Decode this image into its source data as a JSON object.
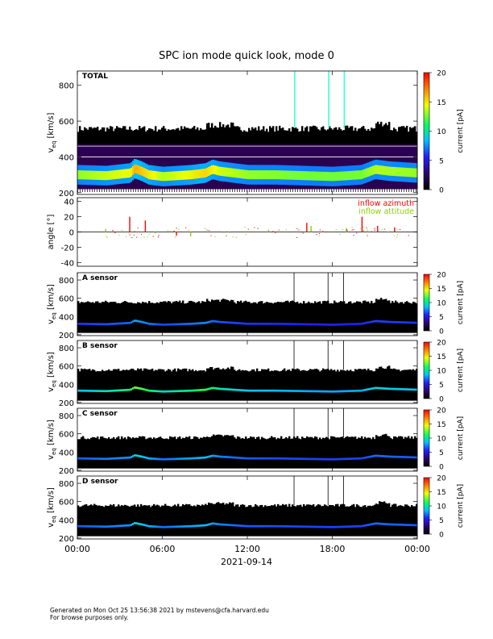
{
  "title": "SPC ion mode quick look, mode 0",
  "footer": {
    "line1": "Generated on Mon Oct 25 13:56:38 2021 by mstevens@cfa.harvard.edu",
    "line2": "For browse purposes only."
  },
  "xaxis": {
    "ticks": [
      "00:00",
      "06:00",
      "12:00",
      "18:00",
      "00:00"
    ],
    "date": "2021-09-14"
  },
  "colorbar": {
    "label": "current [pA]",
    "ticks": [
      "0",
      "5",
      "10",
      "15",
      "20"
    ],
    "range": [
      0,
      20
    ]
  },
  "colors": {
    "background_fill": "#000000",
    "beam_core": "#00ff80",
    "beam_peak": "#ff3000",
    "azimuth": "#ff0000",
    "attitude": "#90d000",
    "inflow_purple": "#4020a0"
  },
  "chart_data": [
    {
      "type": "heatmap",
      "panel_label": "TOTAL",
      "ylabel": "v_eq [km/s]",
      "ylim": [
        190,
        880
      ],
      "yticks": [
        "200",
        "400",
        "600",
        "800"
      ],
      "xlim_hours": [
        0,
        24
      ],
      "beam_speed_kms": {
        "hours": [
          0,
          2,
          3.7,
          4,
          4.5,
          5,
          6,
          7,
          8,
          9,
          9.5,
          10,
          12,
          14,
          16,
          18,
          20,
          21,
          22,
          24
        ],
        "speed": [
          300,
          295,
          310,
          335,
          320,
          300,
          290,
          295,
          300,
          310,
          330,
          320,
          300,
          300,
          295,
          290,
          300,
          330,
          320,
          310
        ]
      },
      "peak_current_pA": {
        "hours": [
          0,
          3.7,
          4,
          6,
          9,
          10,
          12,
          16,
          20,
          21,
          24
        ],
        "current": [
          9,
          12,
          16,
          10,
          14,
          11,
          9,
          8,
          8,
          10,
          9
        ]
      },
      "vertical_spikes_hours": [
        15.3,
        17.7,
        18.8
      ]
    },
    {
      "type": "scatter",
      "ylabel": "angle [°]",
      "ylim": [
        -45,
        45
      ],
      "yticks": [
        "-40",
        "-20",
        "0",
        "20",
        "40"
      ],
      "series": [
        {
          "name": "inflow azimuth",
          "x_hours": [
            3.7,
            4.8,
            7.0,
            16.2,
            20.1,
            21.2,
            22.4
          ],
          "y": [
            20,
            15,
            -5,
            12,
            20,
            8,
            6
          ]
        },
        {
          "name": "inflow attitude",
          "x_hours": [
            2.0,
            5.5,
            8.0,
            13.5,
            16.5,
            19.0,
            20.5
          ],
          "y": [
            4,
            -2,
            -6,
            3,
            8,
            5,
            2
          ]
        }
      ]
    },
    {
      "type": "heatmap",
      "panel_label": "A sensor",
      "ylabel": "v_eq [km/s]",
      "ylim": [
        190,
        880
      ],
      "yticks": [
        "200",
        "400",
        "600",
        "800"
      ],
      "peak_current_pA": 4
    },
    {
      "type": "heatmap",
      "panel_label": "B sensor",
      "ylabel": "v_eq [km/s]",
      "ylim": [
        190,
        880
      ],
      "yticks": [
        "200",
        "400",
        "600",
        "800"
      ],
      "peak_current_pA": 8
    },
    {
      "type": "heatmap",
      "panel_label": "C sensor",
      "ylabel": "v_eq [km/s]",
      "ylim": [
        190,
        880
      ],
      "yticks": [
        "200",
        "400",
        "600",
        "800"
      ],
      "peak_current_pA": 5
    },
    {
      "type": "heatmap",
      "panel_label": "D sensor",
      "ylabel": "v_eq [km/s]",
      "ylim": [
        190,
        880
      ],
      "yticks": [
        "200",
        "400",
        "600",
        "800"
      ],
      "peak_current_pA": 5
    }
  ]
}
